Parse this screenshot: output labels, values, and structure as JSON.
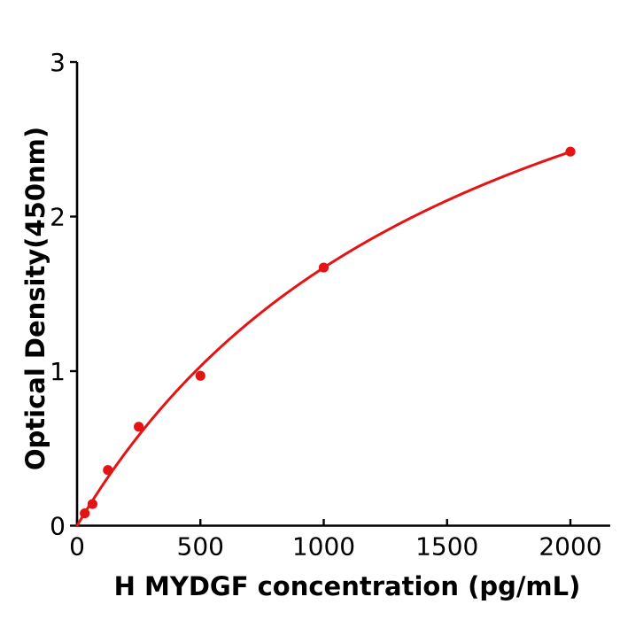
{
  "figure": {
    "background": "#ffffff",
    "axis_color": "#000000",
    "tick_label_color": "#000000"
  },
  "chart_data": {
    "type": "scatter",
    "title": "",
    "xlabel": "H  MYDGF concentration (pg/mL)",
    "ylabel": "Optical Density(450nm)",
    "x": [
      31.25,
      62.5,
      125,
      250,
      500,
      1000,
      2000
    ],
    "y": [
      0.08,
      0.14,
      0.36,
      0.64,
      0.97,
      1.67,
      2.42
    ],
    "x_ticks": [
      0,
      500,
      1000,
      1500,
      2000
    ],
    "y_ticks": [
      0,
      1,
      2,
      3
    ],
    "xlim": [
      0,
      2160
    ],
    "ylim": [
      0,
      3
    ],
    "grid": false,
    "legend": "none",
    "marker_color": "#e41414",
    "line_color": "#e41414",
    "fit_curve": {
      "type": "saturation_binding",
      "vmax": 4.39,
      "km": 1630,
      "x_start": 0,
      "x_end": 2000
    }
  }
}
